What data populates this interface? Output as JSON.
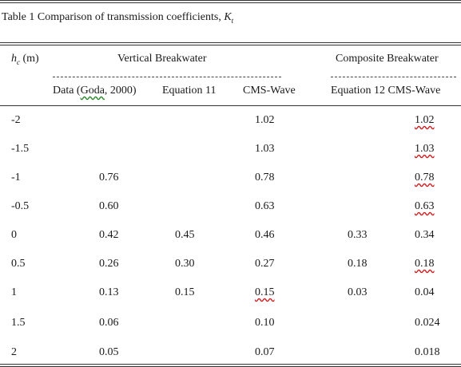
{
  "caption": {
    "prefix": "Table 1 Comparison  of transmission  coefficients, ",
    "symbol": "K",
    "subscript": "t"
  },
  "header": {
    "hc_symbol": "h",
    "hc_sub": "c",
    "hc_unit": " (m)",
    "group_vertical": "Vertical Breakwater",
    "group_composite": "Composite Breakwater",
    "col_data_a": "Data (",
    "col_data_goda": "Goda",
    "col_data_b": ", 2000)",
    "col_eq11": "Equation 11",
    "col_cms_vertical": "CMS-Wave",
    "col_eq12_a": "Equation 12",
    "col_eq12_b": "  CMS-Wave"
  },
  "rows": [
    {
      "hc": "-2",
      "data": "",
      "eq11": "",
      "cms_v": "1.02",
      "eq12": "",
      "cms_c": "1.02"
    },
    {
      "hc": "-1.5",
      "data": "",
      "eq11": "",
      "cms_v": "1.03",
      "eq12": "",
      "cms_c": "1.03"
    },
    {
      "hc": "-1",
      "data": "0.76",
      "eq11": "",
      "cms_v": "0.78",
      "eq12": "",
      "cms_c": "0.78"
    },
    {
      "hc": "-0.5",
      "data": "0.60",
      "eq11": "",
      "cms_v": "0.63",
      "eq12": "",
      "cms_c": "0.63"
    },
    {
      "hc": "0",
      "data": "0.42",
      "eq11": "0.45",
      "cms_v": "0.46",
      "eq12": "0.33",
      "cms_c": "0.34"
    },
    {
      "hc": "0.5",
      "data": "0.26",
      "eq11": "0.30",
      "cms_v": "0.27",
      "eq12": "0.18",
      "cms_c": "0.18"
    },
    {
      "hc": "1",
      "data": "0.13",
      "eq11": "0.15",
      "cms_v": "0.15",
      "eq12": "0.03",
      "cms_c": "0.04"
    },
    {
      "hc": "1.5",
      "data": "0.06",
      "eq11": "",
      "cms_v": "0.10",
      "eq12": "",
      "cms_c": "0.024"
    },
    {
      "hc": "2",
      "data": "0.05",
      "eq11": "",
      "cms_v": "0.07",
      "eq12": "",
      "cms_c": "0.018"
    }
  ]
}
